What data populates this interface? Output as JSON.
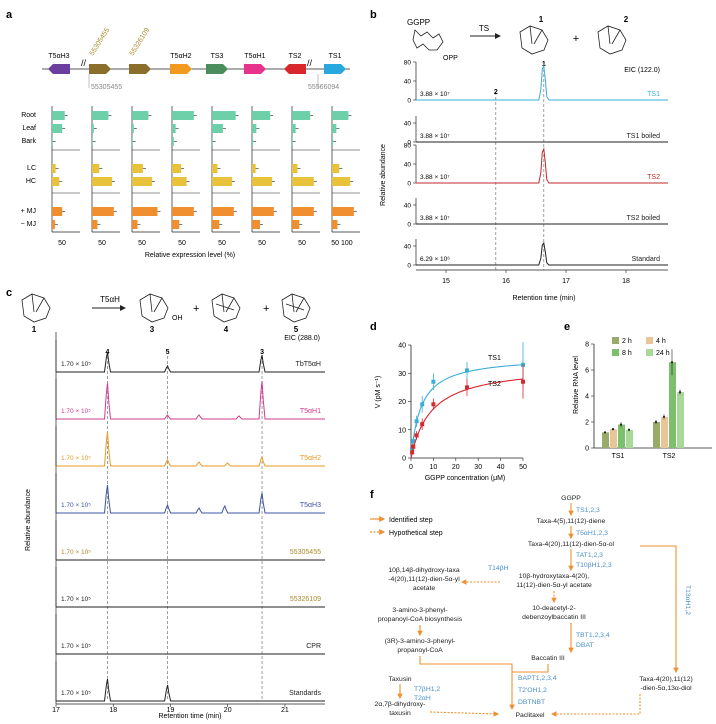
{
  "panels": {
    "a": "a",
    "b": "b",
    "c": "c",
    "d": "d",
    "e": "e",
    "f": "f"
  },
  "colors": {
    "t5ah3": "#6a3fa0",
    "p55305455": "#8b6d2c",
    "p55326109": "#8b6d2c",
    "t5ah2": "#f29a1f",
    "ts3": "#4c8d5e",
    "t5ah1": "#e8338d",
    "ts2": "#d9272e",
    "ts1": "#29a8df",
    "green": "#6ed0a8",
    "yellow": "#e8c23a",
    "orange": "#ef8f30",
    "ts1trace": "#3aaed8",
    "ts2trace": "#c0292b",
    "t5ah1trace": "#d23b8f",
    "t5ah2trace": "#e89a24",
    "t5ah3trace": "#3b54a3",
    "gold": "#a88a2b",
    "blue": "#4a90c8",
    "sec2": "#9aaa6a",
    "sec4": "#e9c69a",
    "sec8": "#7cbf6d",
    "sec24": "#a8d89a"
  },
  "panel_a": {
    "genes": [
      "T5αH3",
      "55305455",
      "55326109",
      "T5αH2",
      "TS3",
      "T5αH1",
      "TS2",
      "TS1"
    ],
    "coord_left": "55305455",
    "coord_right": "55566094",
    "tissues": [
      "Root",
      "Leaf",
      "Bark"
    ],
    "cells": [
      "LC",
      "HC"
    ],
    "treatments": [
      "+ MJ",
      "− MJ"
    ],
    "axis_ticks": [
      "50",
      "50",
      "50",
      "50",
      "50",
      "50",
      "50",
      "50 100"
    ],
    "xlabel": "Relative expression level (%)"
  },
  "panel_b": {
    "substrate": "GGPP",
    "opp": "OPP",
    "enzyme": "TS",
    "product1": "1",
    "product2": "2",
    "eic": "EIC (122.0)",
    "ylabel": "Relative abundance",
    "xlabel": "Retention time (min)",
    "xticks": [
      "15",
      "16",
      "17",
      "18"
    ],
    "peak_labels": [
      "1",
      "2"
    ],
    "traces": [
      {
        "label": "TS1",
        "scale": "3.88 × 10⁷",
        "yticks": [
          "80",
          "40",
          "0"
        ]
      },
      {
        "label": "TS1 boiled",
        "scale": "3.88 × 10⁷",
        "yticks": [
          "40",
          "0"
        ]
      },
      {
        "label": "TS2",
        "scale": "3.88 × 10⁷",
        "yticks": [
          "80",
          "40",
          "0"
        ]
      },
      {
        "label": "TS2 boiled",
        "scale": "3.88 × 10⁷",
        "yticks": [
          "40",
          "0"
        ]
      },
      {
        "label": "Standard",
        "scale": "6.29 × 10⁶",
        "yticks": [
          "40",
          "0"
        ]
      }
    ]
  },
  "panel_c": {
    "enzyme": "T5αH",
    "compounds": [
      "1",
      "3",
      "4",
      "5"
    ],
    "oh": "OH",
    "eic": "EIC (288.0)",
    "ylabel": "Relative abundance",
    "xlabel": "Retention time (min)",
    "xticks": [
      "17",
      "18",
      "19",
      "20",
      "21"
    ],
    "peak_labels": [
      "4",
      "5",
      "3"
    ],
    "traces": [
      {
        "label": "TbT5αH",
        "scale": "1.70 × 10⁵"
      },
      {
        "label": "T5αH1",
        "scale": "1.70 × 10⁵"
      },
      {
        "label": "T5αH2",
        "scale": "1.70 × 10⁵"
      },
      {
        "label": "T5αH3",
        "scale": "1.70 × 10⁵"
      },
      {
        "label": "55305455",
        "scale": "1.70 × 10⁵"
      },
      {
        "label": "55326109",
        "scale": "1.70 × 10⁵"
      },
      {
        "label": "CPR",
        "scale": "1.70 × 10⁵"
      },
      {
        "label": "Standards",
        "scale": "1.70 × 10⁵"
      }
    ]
  },
  "chart_data": [
    {
      "type": "scatter",
      "panel": "d",
      "xlabel": "GGPP concentration (μM)",
      "ylabel": "V (pM s⁻¹)",
      "xlim": [
        0,
        50
      ],
      "ylim": [
        0,
        40
      ],
      "xticks": [
        "0",
        "10",
        "20",
        "30",
        "40",
        "50"
      ],
      "yticks": [
        "0",
        "10",
        "20",
        "30",
        "40"
      ],
      "series": [
        {
          "name": "TS1",
          "x": [
            0.5,
            1,
            2.5,
            5,
            10,
            25,
            50
          ],
          "y": [
            3,
            6,
            13,
            19,
            27,
            31,
            33
          ],
          "err": [
            1,
            1.5,
            2,
            3,
            3,
            3,
            8
          ]
        },
        {
          "name": "TS2",
          "x": [
            0.5,
            1,
            2.5,
            5,
            10,
            25,
            50
          ],
          "y": [
            2,
            4,
            8,
            12,
            19,
            25,
            27
          ],
          "err": [
            1,
            1,
            1.5,
            2,
            2,
            3,
            6
          ]
        }
      ]
    },
    {
      "type": "bar",
      "panel": "e",
      "ylabel": "Relative RNA level",
      "ylim": [
        0,
        8
      ],
      "yticks": [
        "0",
        "2",
        "4",
        "6",
        "8"
      ],
      "categories": [
        "TS1",
        "TS2"
      ],
      "legend": [
        "2 h",
        "4 h",
        "8 h",
        "24 h"
      ],
      "series": [
        {
          "name": "2 h",
          "values": [
            1.2,
            2.0
          ],
          "err": [
            0.05,
            0.15
          ]
        },
        {
          "name": "4 h",
          "values": [
            1.45,
            2.4
          ],
          "err": [
            0.1,
            0.2
          ]
        },
        {
          "name": "8 h",
          "values": [
            1.8,
            6.6
          ],
          "err": [
            0.2,
            1.0
          ]
        },
        {
          "name": "24 h",
          "values": [
            1.4,
            4.3
          ],
          "err": [
            0.1,
            0.2
          ]
        }
      ]
    }
  ],
  "panel_f": {
    "legend_identified": "Identified step",
    "legend_hypothetical": "Hypothetical step",
    "nodes": {
      "ggpp": "GGPP",
      "taxadiene": "Taxa-4(5),11(12)-diene",
      "taxadienol": "Taxa-4(20),11(12)-dien-5α-ol",
      "dihydroxy1": "10β,14β-dihydroxy-taxa",
      "dihydroxy2": "-4(20),11(12)-dien-5α-yl",
      "dihydroxy3": "acetate",
      "hydroxy1": "10β-hydroxytaxa-4(20),",
      "hydroxy2": "11(12)-dien-5α-yl acetate",
      "amino1": "3-amino-3-phenyl-",
      "amino2": "propanoyl-CoA biosynthesis",
      "dab1": "10-deacetyl-2-",
      "dab2": "debenzoylbaccatin III",
      "r3amino1": "(3R)-3-amino-3-phenyl-",
      "r3amino2": "propanoyl-CoA",
      "baccatin": "Baccatin III",
      "taxusin": "Taxusin",
      "dihydroxytaxusin1": "2α,7β-dihydroxy-",
      "dihydroxytaxusin2": "taxusin",
      "diol1": "Taxa-4(20),11(12)",
      "diol2": "-dien-5α,13α-diol",
      "paclitaxel": "Paclitaxel"
    },
    "enzymes": {
      "ts": "TS1,2,3",
      "t5ah": "T5αH1,2,3",
      "tat": "TAT1,2,3",
      "t10bh": "T10βH1,2,3",
      "t14bh": "T14βH",
      "tbt": "TBT1,2,3,4",
      "dbat": "DBAT",
      "bapt": "BAPT1,2,3,4",
      "t2oh": "T2′OH1,2",
      "dbtnbt": "DBTNBT",
      "t7bh": "T7βH1,2",
      "t2ah": "T2αH",
      "t13ah": "T13αH1,2"
    }
  }
}
